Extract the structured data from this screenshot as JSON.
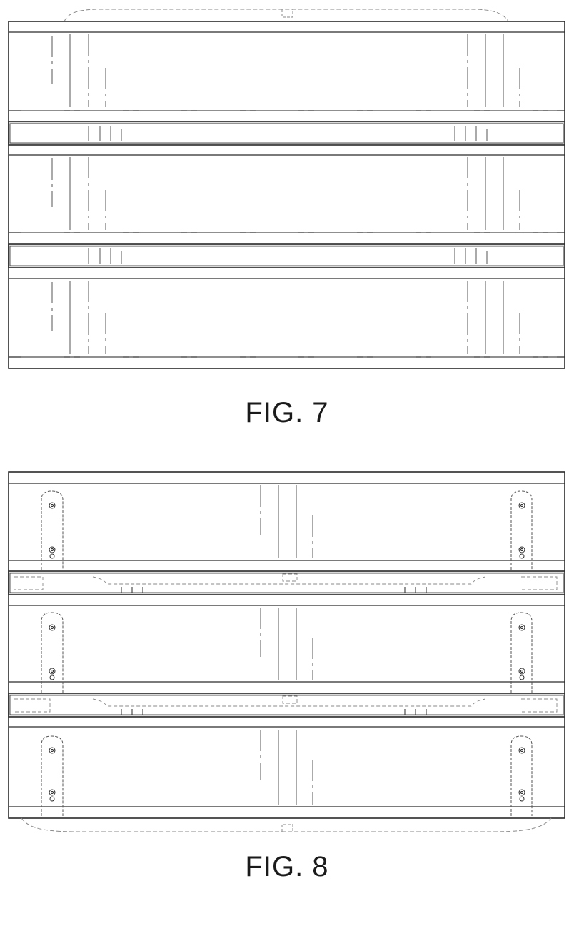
{
  "figures": [
    {
      "label": "FIG. 7"
    },
    {
      "label": "FIG. 8"
    }
  ],
  "colors": {
    "line": "#2a2a2a",
    "hidden_line": "#555555",
    "phantom": "#8a8a8a",
    "bar_fill": "#d9d9d9"
  }
}
